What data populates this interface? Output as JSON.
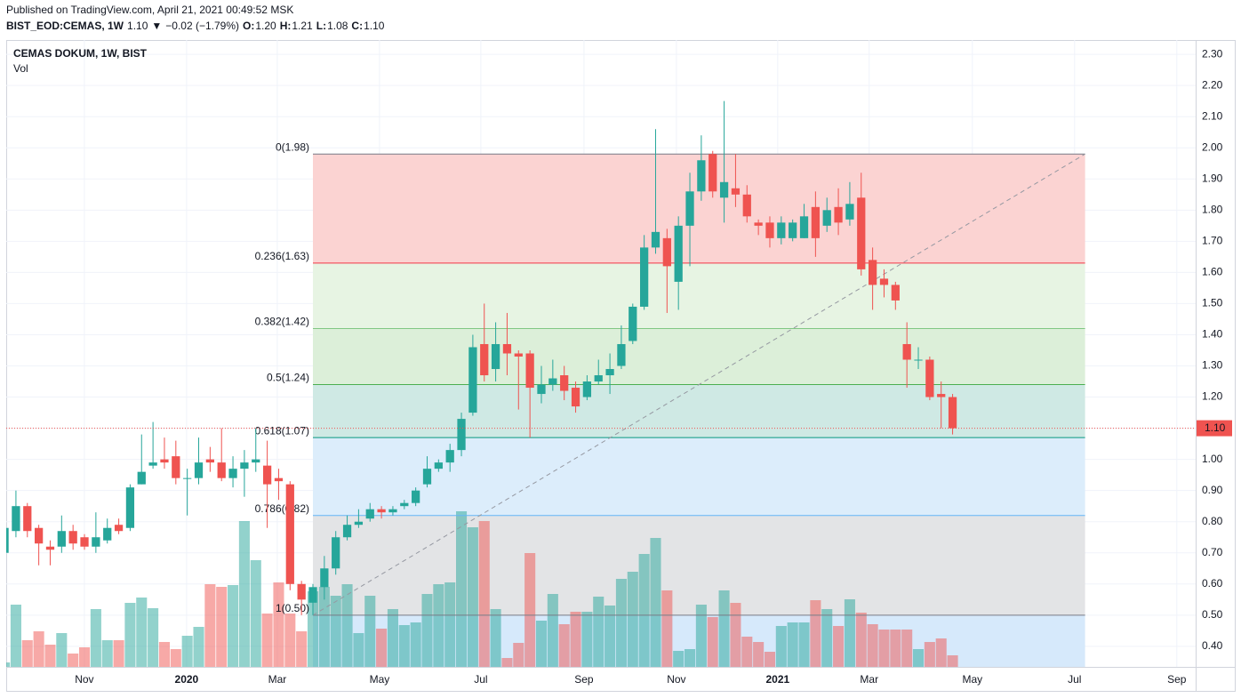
{
  "header": {
    "published": "Published on TradingView.com, April 21, 2021 00:49:52 MSK",
    "legend_parts": [
      {
        "text": "BIST_EOD:CEMAS, 1W",
        "color": "#131722",
        "bold": true
      },
      {
        "text": "1.10",
        "color": "#131722"
      },
      {
        "text": "▼",
        "color": "#ef5350"
      },
      {
        "text": "−0.02 (−1.79%)",
        "color": "#131722"
      },
      {
        "text": "O:",
        "color": "#131722",
        "bold": true
      },
      {
        "text": "1.20",
        "color": "#ef5350"
      },
      {
        "text": "H:",
        "color": "#131722",
        "bold": true
      },
      {
        "text": "1.21",
        "color": "#ef5350"
      },
      {
        "text": "L:",
        "color": "#131722",
        "bold": true
      },
      {
        "text": "1.08",
        "color": "#ef5350"
      },
      {
        "text": "C:",
        "color": "#131722",
        "bold": true
      },
      {
        "text": "1.10",
        "color": "#ef5350"
      }
    ]
  },
  "chart_data": {
    "type": "candlestick",
    "title": "CEMAS DOKUM, 1W, BIST",
    "volume_label": "Vol",
    "up_color": "#26a69a",
    "down_color": "#ef5350",
    "xlim": [
      0.15,
      104.28
    ],
    "ylim": [
      0.334,
      2.346
    ],
    "xticks": [
      {
        "value": 6.99,
        "label": "Nov"
      },
      {
        "value": 15.94,
        "label": "2020"
      },
      {
        "value": 23.88,
        "label": "Mar"
      },
      {
        "value": 32.83,
        "label": "May"
      },
      {
        "value": 41.7,
        "label": "Jul"
      },
      {
        "value": 50.73,
        "label": "Sep"
      },
      {
        "value": 58.82,
        "label": "Nov"
      },
      {
        "value": 67.69,
        "label": "2021"
      },
      {
        "value": 75.7,
        "label": "Mar"
      },
      {
        "value": 84.73,
        "label": "May"
      },
      {
        "value": 93.68,
        "label": "Jul"
      },
      {
        "value": 102.63,
        "label": "Sep"
      }
    ],
    "yticks": [
      {
        "value": 0.4,
        "label": "0.40"
      },
      {
        "value": 0.5,
        "label": "0.50"
      },
      {
        "value": 0.6,
        "label": "0.60"
      },
      {
        "value": 0.7,
        "label": "0.70"
      },
      {
        "value": 0.8,
        "label": "0.80"
      },
      {
        "value": 0.9,
        "label": "0.90"
      },
      {
        "value": 1,
        "label": "1.00"
      },
      {
        "value": 1.1,
        "label": "1.10"
      },
      {
        "value": 1.2,
        "label": "1.20"
      },
      {
        "value": 1.3,
        "label": "1.30"
      },
      {
        "value": 1.4,
        "label": "1.40"
      },
      {
        "value": 1.5,
        "label": "1.50"
      },
      {
        "value": 1.6,
        "label": "1.60"
      },
      {
        "value": 1.7,
        "label": "1.70"
      },
      {
        "value": 1.8,
        "label": "1.80"
      },
      {
        "value": 1.9,
        "label": "1.90"
      },
      {
        "value": 2,
        "label": "2.00"
      },
      {
        "value": 2.1,
        "label": "2.10"
      },
      {
        "value": 2.2,
        "label": "2.20"
      },
      {
        "value": 2.3,
        "label": "2.30"
      }
    ],
    "grid": true,
    "candles": {
      "open": [
        0.7,
        0.77,
        0.85,
        0.78,
        0.72,
        0.72,
        0.77,
        0.75,
        0.72,
        0.74,
        0.79,
        0.78,
        0.92,
        0.98,
        1.0,
        1.01,
        0.94,
        0.94,
        1.0,
        0.99,
        0.94,
        0.97,
        0.99,
        0.98,
        0.94,
        0.92,
        0.6,
        0.54,
        0.59,
        0.65,
        0.75,
        0.79,
        0.81,
        0.84,
        0.83,
        0.85,
        0.86,
        0.92,
        0.97,
        0.99,
        1.03,
        1.15,
        1.37,
        1.29,
        1.37,
        1.34,
        1.34,
        1.21,
        1.24,
        1.27,
        1.23,
        1.2,
        1.25,
        1.27,
        1.3,
        1.38,
        1.49,
        1.68,
        1.71,
        1.57,
        1.75,
        1.86,
        1.98,
        1.84,
        1.87,
        1.85,
        1.76,
        1.76,
        1.71,
        1.71,
        1.71,
        1.81,
        1.75,
        1.81,
        1.77,
        1.84,
        1.64,
        1.58,
        1.56,
        1.37,
        1.32,
        1.32,
        1.21,
        1.2
      ],
      "high": [
        0.8,
        0.9,
        0.86,
        0.79,
        0.74,
        0.82,
        0.79,
        0.76,
        0.83,
        0.81,
        0.81,
        0.92,
        1.08,
        1.12,
        1.07,
        1.06,
        0.97,
        1.07,
        1.04,
        1.1,
        1.01,
        1.03,
        1.1,
        1.06,
        0.97,
        0.93,
        0.61,
        0.6,
        0.69,
        0.77,
        0.82,
        0.84,
        0.86,
        0.85,
        0.85,
        0.87,
        0.91,
        1.01,
        1.0,
        1.05,
        1.15,
        1.4,
        1.5,
        1.44,
        1.47,
        1.35,
        1.35,
        1.3,
        1.32,
        1.3,
        1.25,
        1.27,
        1.32,
        1.34,
        1.43,
        1.5,
        1.72,
        2.06,
        1.74,
        1.78,
        1.92,
        2.04,
        1.99,
        2.15,
        1.98,
        1.88,
        1.77,
        1.78,
        1.78,
        1.77,
        1.82,
        1.86,
        1.84,
        1.87,
        1.89,
        1.92,
        1.68,
        1.61,
        1.57,
        1.44,
        1.36,
        1.33,
        1.25,
        1.21
      ],
      "low": [
        0.68,
        0.75,
        0.75,
        0.66,
        0.66,
        0.7,
        0.71,
        0.71,
        0.7,
        0.73,
        0.76,
        0.77,
        0.92,
        0.97,
        0.97,
        0.92,
        0.82,
        0.92,
        0.96,
        0.93,
        0.91,
        0.88,
        0.96,
        0.78,
        0.87,
        0.58,
        0.5,
        0.5,
        0.55,
        0.63,
        0.74,
        0.78,
        0.8,
        0.81,
        0.82,
        0.84,
        0.85,
        0.91,
        0.96,
        0.96,
        1.01,
        1.14,
        1.25,
        1.25,
        1.27,
        1.16,
        1.07,
        1.18,
        1.22,
        1.19,
        1.15,
        1.19,
        1.24,
        1.21,
        1.29,
        1.37,
        1.48,
        1.66,
        1.47,
        1.48,
        1.62,
        1.83,
        1.84,
        1.76,
        1.81,
        1.76,
        1.72,
        1.68,
        1.69,
        1.7,
        1.71,
        1.65,
        1.73,
        1.72,
        1.75,
        1.59,
        1.48,
        1.52,
        1.48,
        1.23,
        1.29,
        1.19,
        1.1,
        1.08
      ],
      "close": [
        0.78,
        0.85,
        0.77,
        0.73,
        0.71,
        0.77,
        0.73,
        0.72,
        0.75,
        0.78,
        0.77,
        0.91,
        0.96,
        0.99,
        0.99,
        0.94,
        0.94,
        0.99,
        0.99,
        0.94,
        0.97,
        0.99,
        1.0,
        0.92,
        0.93,
        0.6,
        0.55,
        0.59,
        0.65,
        0.75,
        0.79,
        0.8,
        0.84,
        0.83,
        0.84,
        0.86,
        0.9,
        0.97,
        0.99,
        1.03,
        1.13,
        1.36,
        1.27,
        1.37,
        1.34,
        1.33,
        1.23,
        1.24,
        1.26,
        1.22,
        1.17,
        1.25,
        1.27,
        1.29,
        1.37,
        1.49,
        1.68,
        1.73,
        1.62,
        1.75,
        1.86,
        1.96,
        1.86,
        1.89,
        1.85,
        1.78,
        1.75,
        1.71,
        1.76,
        1.76,
        1.78,
        1.71,
        1.8,
        1.76,
        1.82,
        1.61,
        1.56,
        1.56,
        1.51,
        1.32,
        1.32,
        1.2,
        1.2,
        1.1
      ]
    },
    "volume": [
      5,
      70,
      30,
      40,
      25,
      38,
      15,
      22,
      65,
      30,
      30,
      72,
      78,
      66,
      28,
      20,
      35,
      45,
      93,
      90,
      92,
      164,
      120,
      60,
      95,
      60,
      40,
      85,
      90,
      80,
      93,
      38,
      80,
      43,
      65,
      47,
      50,
      82,
      93,
      95,
      175,
      157,
      164,
      65,
      10,
      27,
      128,
      52,
      82,
      48,
      62,
      62,
      79,
      69,
      99,
      107,
      127,
      145,
      86,
      18,
      20,
      70,
      56,
      86,
      72,
      34,
      28,
      17,
      46,
      50,
      50,
      75,
      65,
      46,
      76,
      61,
      48,
      42,
      42,
      42,
      20,
      28,
      32,
      13
    ],
    "last_price": {
      "value": 1.1,
      "label": "1.10",
      "color": "#ef5350"
    },
    "fib": {
      "x_start": 27,
      "x_end": 94.6,
      "trend_color": "#9598a1",
      "levels": [
        {
          "value": 1.98,
          "label": "0(1.98)",
          "color": "#787b86",
          "fill": "#fbd3d2"
        },
        {
          "value": 1.63,
          "label": "0.236(1.63)",
          "color": "#f23645",
          "fill": "#e7f4e3"
        },
        {
          "value": 1.42,
          "label": "0.382(1.42)",
          "color": "#81c784",
          "fill": "#dcefd9"
        },
        {
          "value": 1.24,
          "label": "0.5(1.24)",
          "color": "#4caf50",
          "fill": "#cfe9e4"
        },
        {
          "value": 1.07,
          "label": "0.618(1.07)",
          "color": "#089981",
          "fill": "#dcedfb"
        },
        {
          "value": 0.82,
          "label": "0.786(0.82)",
          "color": "#64b5f6",
          "fill": "#e3e4e6"
        },
        {
          "value": 0.5,
          "label": "1(0.50)",
          "color": "#787b86",
          "fill": "#d6e9fb"
        }
      ]
    }
  }
}
